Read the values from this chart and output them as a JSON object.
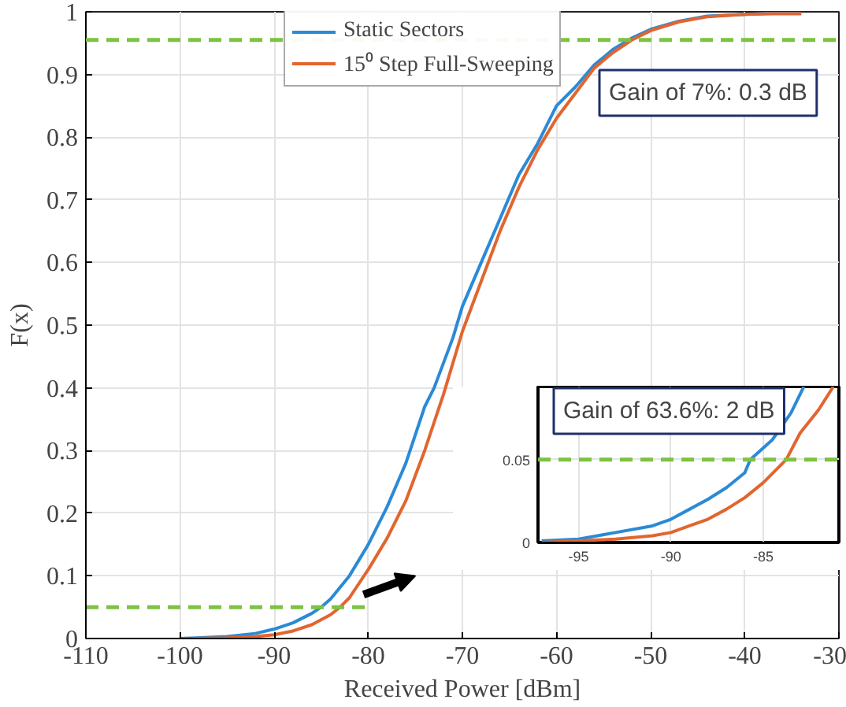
{
  "chart_data": [
    {
      "type": "line",
      "xlabel": "Received Power [dBm]",
      "ylabel": "F(x)",
      "xlim": [
        -110,
        -30
      ],
      "xticks": [
        -110,
        -100,
        -90,
        -80,
        -70,
        -60,
        -50,
        -40,
        -30
      ],
      "ylim": [
        0,
        1
      ],
      "yticks": [
        0,
        0.1,
        0.2,
        0.3,
        0.4,
        0.5,
        0.6,
        0.7,
        0.8,
        0.9,
        1
      ],
      "grid": true,
      "legend": "top",
      "line_style": "solid",
      "series": [
        {
          "name": "Static Sectors",
          "color": "#2b8ad6",
          "x": [
            -100,
            -95,
            -92,
            -90,
            -88,
            -86,
            -85,
            -84,
            -82,
            -80,
            -78,
            -76,
            -74,
            -73,
            -71,
            -70,
            -68,
            -66,
            -64,
            -62,
            -60,
            -58,
            -56,
            -54,
            -52,
            -50,
            -47,
            -44,
            -40,
            -37,
            -34
          ],
          "values": [
            0,
            0.003,
            0.008,
            0.015,
            0.025,
            0.04,
            0.05,
            0.063,
            0.1,
            0.15,
            0.21,
            0.28,
            0.37,
            0.4,
            0.48,
            0.53,
            0.6,
            0.67,
            0.74,
            0.79,
            0.85,
            0.88,
            0.915,
            0.94,
            0.958,
            0.972,
            0.985,
            0.993,
            0.996,
            0.998,
            0.998
          ]
        },
        {
          "name": "15⁰ Step Full-Sweeping",
          "color": "#e2652f",
          "x": [
            -98.6,
            -95,
            -92,
            -90,
            -88,
            -86,
            -84,
            -83,
            -82,
            -80,
            -78,
            -76,
            -74,
            -72,
            -70,
            -68,
            -66,
            -64,
            -62,
            -60,
            -58,
            -56,
            -54,
            -52,
            -50,
            -47,
            -44,
            -40,
            -37,
            -34
          ],
          "values": [
            0,
            0.001,
            0.003,
            0.006,
            0.012,
            0.022,
            0.038,
            0.05,
            0.065,
            0.11,
            0.16,
            0.22,
            0.3,
            0.39,
            0.49,
            0.57,
            0.65,
            0.72,
            0.78,
            0.83,
            0.87,
            0.91,
            0.935,
            0.955,
            0.97,
            0.984,
            0.992,
            0.996,
            0.997,
            0.997
          ]
        },
        {
          "color": "#7dc242",
          "line_style": "dashed",
          "x": [
            -110,
            -80
          ],
          "values": [
            0.05,
            0.05
          ]
        }
      ],
      "ref_lines": [
        {
          "axis": "y",
          "value": 0.955,
          "color": "#7dc242",
          "line_style": "dashed"
        }
      ],
      "annotations": [
        "Gain of 7%: 0.3 dB"
      ]
    },
    {
      "type": "line",
      "xlim": [
        -97.2,
        -80.9
      ],
      "xticks": [
        -95,
        -90,
        -85
      ],
      "ylim": [
        0,
        0.094
      ],
      "yticks": [
        0,
        0.05
      ],
      "grid": true,
      "line_style": "solid",
      "series": [
        {
          "color": "#2b8ad6",
          "x": [
            -97,
            -95,
            -93,
            -91,
            -90,
            -89,
            -88,
            -87,
            -86,
            -85.7,
            -84.5,
            -83.5,
            -82.8
          ],
          "values": [
            0.001,
            0.002,
            0.006,
            0.01,
            0.014,
            0.02,
            0.026,
            0.033,
            0.042,
            0.05,
            0.062,
            0.078,
            0.094
          ]
        },
        {
          "color": "#e2652f",
          "x": [
            -97,
            -95,
            -93,
            -91,
            -90,
            -89,
            -88,
            -87,
            -86,
            -85,
            -83.75,
            -83,
            -82,
            -81.2
          ],
          "values": [
            0,
            0.001,
            0.002,
            0.004,
            0.006,
            0.01,
            0.014,
            0.02,
            0.027,
            0.036,
            0.05,
            0.066,
            0.08,
            0.094
          ]
        }
      ],
      "ref_lines": [
        {
          "axis": "y",
          "value": 0.05,
          "color": "#7dc242",
          "line_style": "dashed"
        }
      ],
      "annotations": [
        "Gain of 63.6%: 2 dB"
      ]
    }
  ]
}
